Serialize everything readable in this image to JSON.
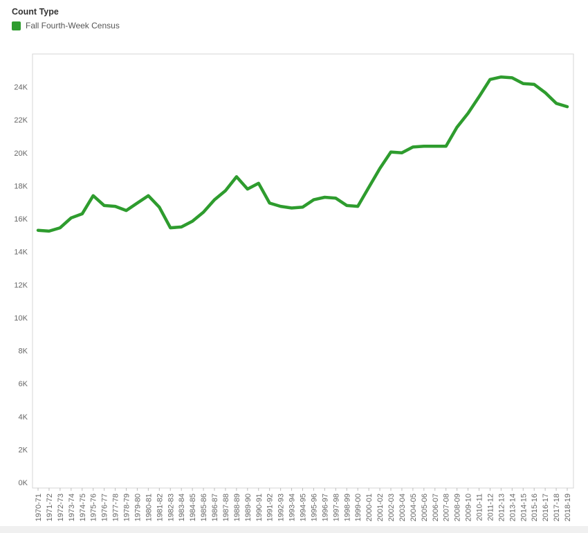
{
  "legend": {
    "title": "Count Type",
    "item_label": "Fall Fourth-Week Census",
    "item_color": "#2e9c2e"
  },
  "chart_data": {
    "type": "line",
    "title": "",
    "xlabel": "",
    "ylabel": "",
    "ylim": [
      0,
      25500
    ],
    "grid": false,
    "legend_position": "top-left",
    "y_ticks": [
      0,
      2000,
      4000,
      6000,
      8000,
      10000,
      12000,
      14000,
      16000,
      18000,
      20000,
      22000,
      24000
    ],
    "y_tick_labels": [
      "0K",
      "2K",
      "4K",
      "6K",
      "8K",
      "10K",
      "12K",
      "14K",
      "16K",
      "18K",
      "20K",
      "22K",
      "24K"
    ],
    "categories": [
      "1970-71",
      "1971-72",
      "1972-73",
      "1973-74",
      "1974-75",
      "1975-76",
      "1976-77",
      "1977-78",
      "1978-79",
      "1979-80",
      "1980-81",
      "1981-82",
      "1982-83",
      "1983-84",
      "1984-85",
      "1985-86",
      "1986-87",
      "1987-88",
      "1988-89",
      "1989-90",
      "1990-91",
      "1991-92",
      "1992-93",
      "1993-94",
      "1994-95",
      "1995-96",
      "1996-97",
      "1997-98",
      "1998-99",
      "1999-00",
      "2000-01",
      "2001-02",
      "2002-03",
      "2003-04",
      "2004-05",
      "2005-06",
      "2006-07",
      "2007-08",
      "2008-09",
      "2009-10",
      "2010-11",
      "2011-12",
      "2012-13",
      "2013-14",
      "2014-15",
      "2015-16",
      "2016-17",
      "2017-18",
      "2018-19"
    ],
    "series": [
      {
        "name": "Fall Fourth-Week Census",
        "color": "#2e9c2e",
        "values": [
          15300,
          15250,
          15450,
          16050,
          16300,
          17400,
          16800,
          16750,
          16500,
          16950,
          17400,
          16700,
          15450,
          15500,
          15850,
          16400,
          17150,
          17700,
          18550,
          17800,
          18150,
          16950,
          16750,
          16650,
          16700,
          17150,
          17300,
          17250,
          16800,
          16750,
          17900,
          19050,
          20050,
          20000,
          20350,
          20400,
          20400,
          20400,
          21550,
          22400,
          23400,
          24450,
          24600,
          24550,
          24200,
          24150,
          23650,
          23000,
          22800
        ]
      }
    ]
  }
}
